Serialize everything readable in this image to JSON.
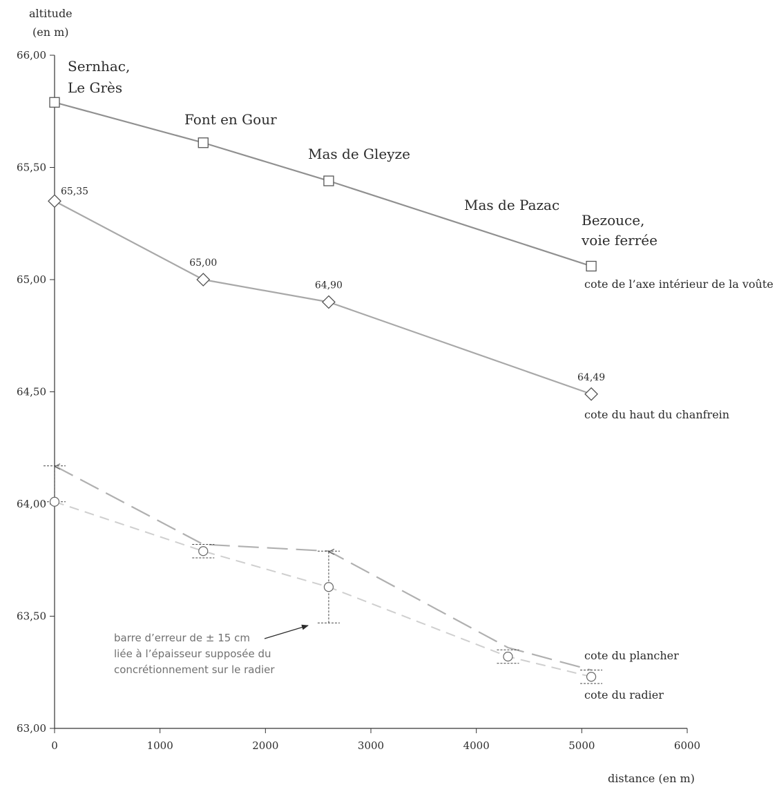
{
  "chart_data": {
    "type": "line",
    "xlabel": "distance (en m)",
    "ylabel_line1": "altitude",
    "ylabel_line2": "(en m)",
    "xlim": [
      0,
      6000
    ],
    "ylim": [
      63.0,
      66.0
    ],
    "x_ticks": [
      0,
      1000,
      2000,
      3000,
      4000,
      5000,
      6000
    ],
    "x_tick_labels": [
      "0",
      "1000",
      "2000",
      "3000",
      "4000",
      "5000",
      "6000"
    ],
    "y_ticks": [
      63.0,
      63.5,
      64.0,
      64.5,
      65.0,
      65.5,
      66.0
    ],
    "y_tick_labels": [
      "63,00",
      "63,50",
      "64,00",
      "64,50",
      "65,00",
      "65,50",
      "66,00"
    ],
    "grid": false,
    "series": [
      {
        "name": "cote de l’axe intérieur de la voûte",
        "marker": "square",
        "line_style": "solid",
        "color": "#909090",
        "points": [
          {
            "x": 0,
            "y": 65.79
          },
          {
            "x": 1410,
            "y": 65.61
          },
          {
            "x": 2600,
            "y": 65.44
          },
          {
            "x": 5090,
            "y": 65.06
          }
        ]
      },
      {
        "name": "cote du haut du chanfrein",
        "marker": "diamond",
        "line_style": "solid",
        "color": "#a8a8a8",
        "points": [
          {
            "x": 0,
            "y": 65.35,
            "label": "65,35"
          },
          {
            "x": 1410,
            "y": 65.0,
            "label": "65,00"
          },
          {
            "x": 2600,
            "y": 64.9,
            "label": "64,90"
          },
          {
            "x": 5090,
            "y": 64.49,
            "label": "64,49"
          }
        ]
      },
      {
        "name": "cote du plancher",
        "marker": "none",
        "line_style": "long-dash",
        "color": "#b0b0b0",
        "points": [
          {
            "x": 0,
            "y": 64.17
          },
          {
            "x": 1410,
            "y": 63.82
          },
          {
            "x": 2600,
            "y": 63.79
          },
          {
            "x": 4300,
            "y": 63.36
          },
          {
            "x": 5090,
            "y": 63.26
          }
        ]
      },
      {
        "name": "cote du radier",
        "marker": "circle",
        "line_style": "dashed",
        "color": "#cfcfcf",
        "points": [
          {
            "x": 0,
            "y": 64.01
          },
          {
            "x": 1410,
            "y": 63.79
          },
          {
            "x": 2600,
            "y": 63.63
          },
          {
            "x": 4300,
            "y": 63.32
          },
          {
            "x": 5090,
            "y": 63.23
          }
        ]
      }
    ],
    "error_bars": [
      {
        "x": 0,
        "low": 64.01,
        "high": 64.17
      },
      {
        "x": 1410,
        "low": 63.76,
        "high": 63.82
      },
      {
        "x": 2600,
        "low": 63.47,
        "high": 63.79
      },
      {
        "x": 4300,
        "low": 63.29,
        "high": 63.35
      },
      {
        "x": 5090,
        "low": 63.2,
        "high": 63.26
      }
    ],
    "places": [
      {
        "lines": [
          "Sernhac,",
          "Le Grès"
        ]
      },
      {
        "lines": [
          "Font en Gour"
        ]
      },
      {
        "lines": [
          "Mas de Gleyze"
        ]
      },
      {
        "lines": [
          "Mas de Pazac"
        ]
      },
      {
        "lines": [
          "Bezouce,",
          "voie ferrée"
        ]
      }
    ],
    "annotation": {
      "lines": [
        "barre d’erreur de ± 15 cm",
        "liée à l’épaisseur supposée du",
        "concrétionnement sur le radier"
      ]
    }
  }
}
